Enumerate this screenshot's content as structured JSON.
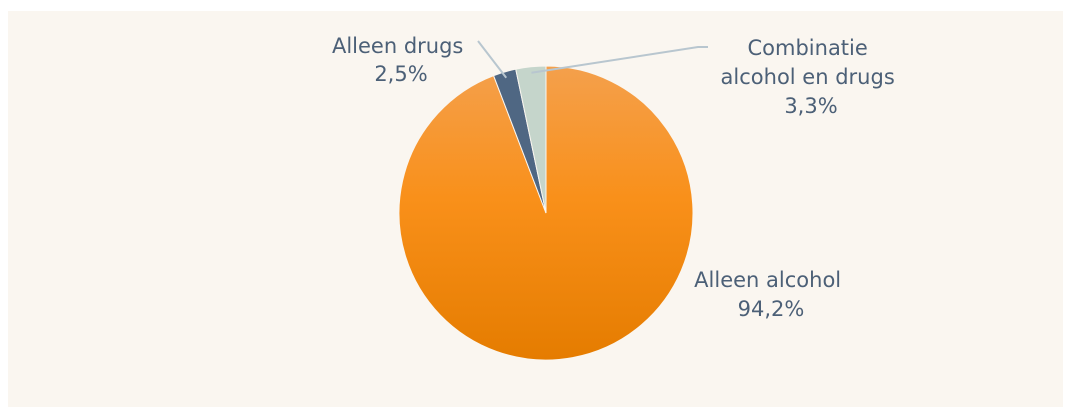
{
  "chart_data": {
    "type": "pie",
    "slices": [
      {
        "label": "Alleen alcohol",
        "value": 94.2,
        "display": "94,2%",
        "color": "#f58e1a"
      },
      {
        "label": "Alleen drugs",
        "value": 2.5,
        "display": "2,5%",
        "color": "#4f6783"
      },
      {
        "label": "Combinatie alcohol en drugs",
        "value": 3.3,
        "display": "3,3%",
        "color": "#c5d5cb"
      }
    ],
    "start_angle": "12 o'clock",
    "direction": "clockwise",
    "legend": "none",
    "label_color": "#4c6077",
    "background": "#faf6f0"
  }
}
